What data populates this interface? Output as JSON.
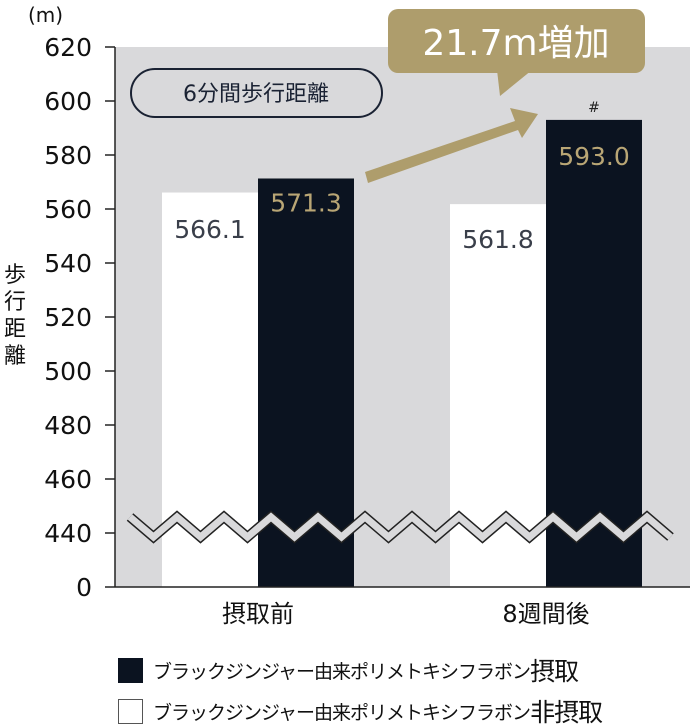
{
  "chart_data": {
    "type": "bar",
    "unit_label": "(m)",
    "ylabel": "歩行距離",
    "title_pill": "6分間歩行距離",
    "callout": "21.7m増加",
    "categories": [
      "摂取前",
      "8週間後"
    ],
    "ylim": [
      440,
      620
    ],
    "axis_break": true,
    "yticks": [
      620,
      600,
      580,
      560,
      540,
      520,
      500,
      480,
      460,
      440,
      0
    ],
    "series": [
      {
        "name": "ブラックジンジャー由来ポリメトキシフラボン非摂取",
        "values": [
          566.1,
          561.8
        ],
        "labels": [
          "566.1",
          "561.8"
        ],
        "color": "#ffffff",
        "label_color": "#3a3f4a"
      },
      {
        "name": "ブラックジンジャー由来ポリメトキシフラボン摂取",
        "values": [
          571.3,
          593.0
        ],
        "labels": [
          "571.3",
          "593.0"
        ],
        "color": "#0b1320",
        "label_color": "#b9a675"
      }
    ],
    "significance_mark": "#",
    "colors": {
      "plot_bg": "#d9d9db",
      "accent": "#ae9d6c",
      "dark": "#0b1320"
    }
  },
  "legend": [
    {
      "text": "ブラックジンジャー由来ポリメトキシフラボン",
      "suffix": "摂取"
    },
    {
      "text": "ブラックジンジャー由来ポリメトキシフラボン",
      "suffix": "非摂取"
    }
  ]
}
